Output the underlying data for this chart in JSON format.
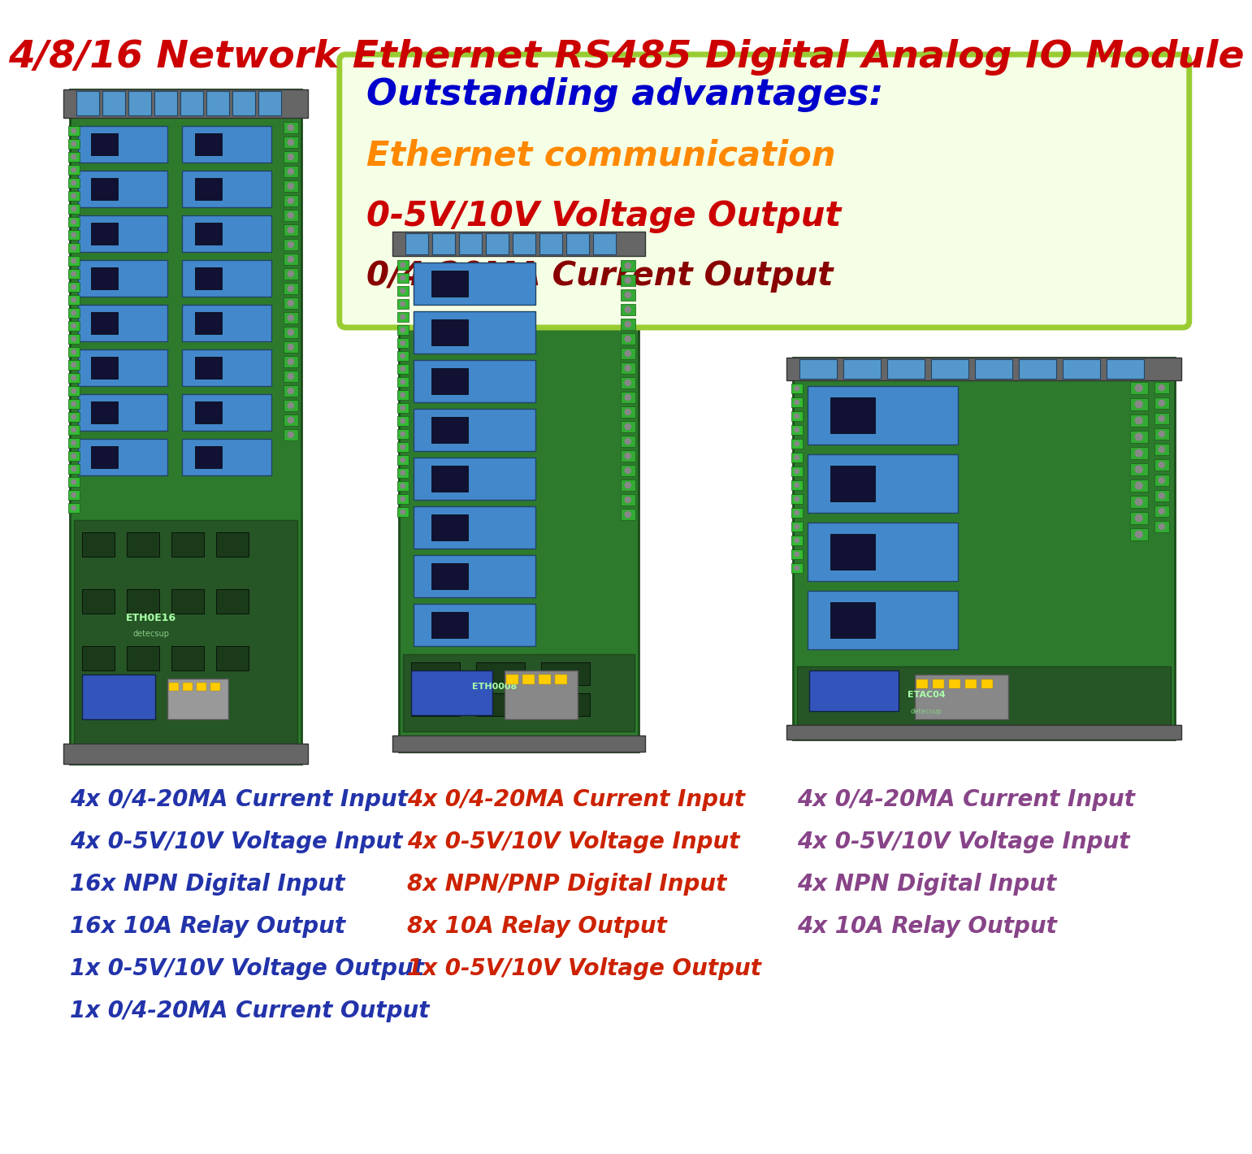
{
  "title": "4/8/16 Network Ethernet RS485 Digital Analog IO Module",
  "title_color": "#cc0000",
  "title_fontsize": 34,
  "box_title": "Outstanding advantages:",
  "box_title_color": "#0000cc",
  "box_line1": "Ethernet communication",
  "box_line1_color": "#ff8800",
  "box_line2": "0-5V/10V Voltage Output",
  "box_line2_color": "#cc0000",
  "box_line3": "0/4-20MA Current Output",
  "box_line3_color": "#880000",
  "box_bg": "#f5ffe5",
  "box_border": "#99cc33",
  "background": "#ffffff",
  "col1_specs": [
    "4x 0/4-20MA Current Input",
    "4x 0-5V/10V Voltage Input",
    "16x NPN Digital Input",
    "16x 10A Relay Output",
    "1x 0-5V/10V Voltage Output",
    "1x 0/4-20MA Current Output"
  ],
  "col1_color": "#2233aa",
  "col2_specs": [
    "4x 0/4-20MA Current Input",
    "4x 0-5V/10V Voltage Input",
    "8x NPN/PNP Digital Input",
    "8x 10A Relay Output",
    "1x 0-5V/10V Voltage Output"
  ],
  "col2_color": "#cc2200",
  "col3_specs": [
    "4x 0/4-20MA Current Input",
    "4x 0-5V/10V Voltage Input",
    "4x NPN Digital Input",
    "4x 10A Relay Output"
  ],
  "col3_color": "#884488",
  "spec_fontsize": 20,
  "board_green": "#2d7a2d",
  "board_green_light": "#3a9a3a",
  "rail_gray": "#888888",
  "relay_blue": "#4488cc",
  "relay_blue_dark": "#224466",
  "term_blue": "#aaccee",
  "ethernet_gray": "#aaaaaa",
  "module_blue": "#3355bb"
}
